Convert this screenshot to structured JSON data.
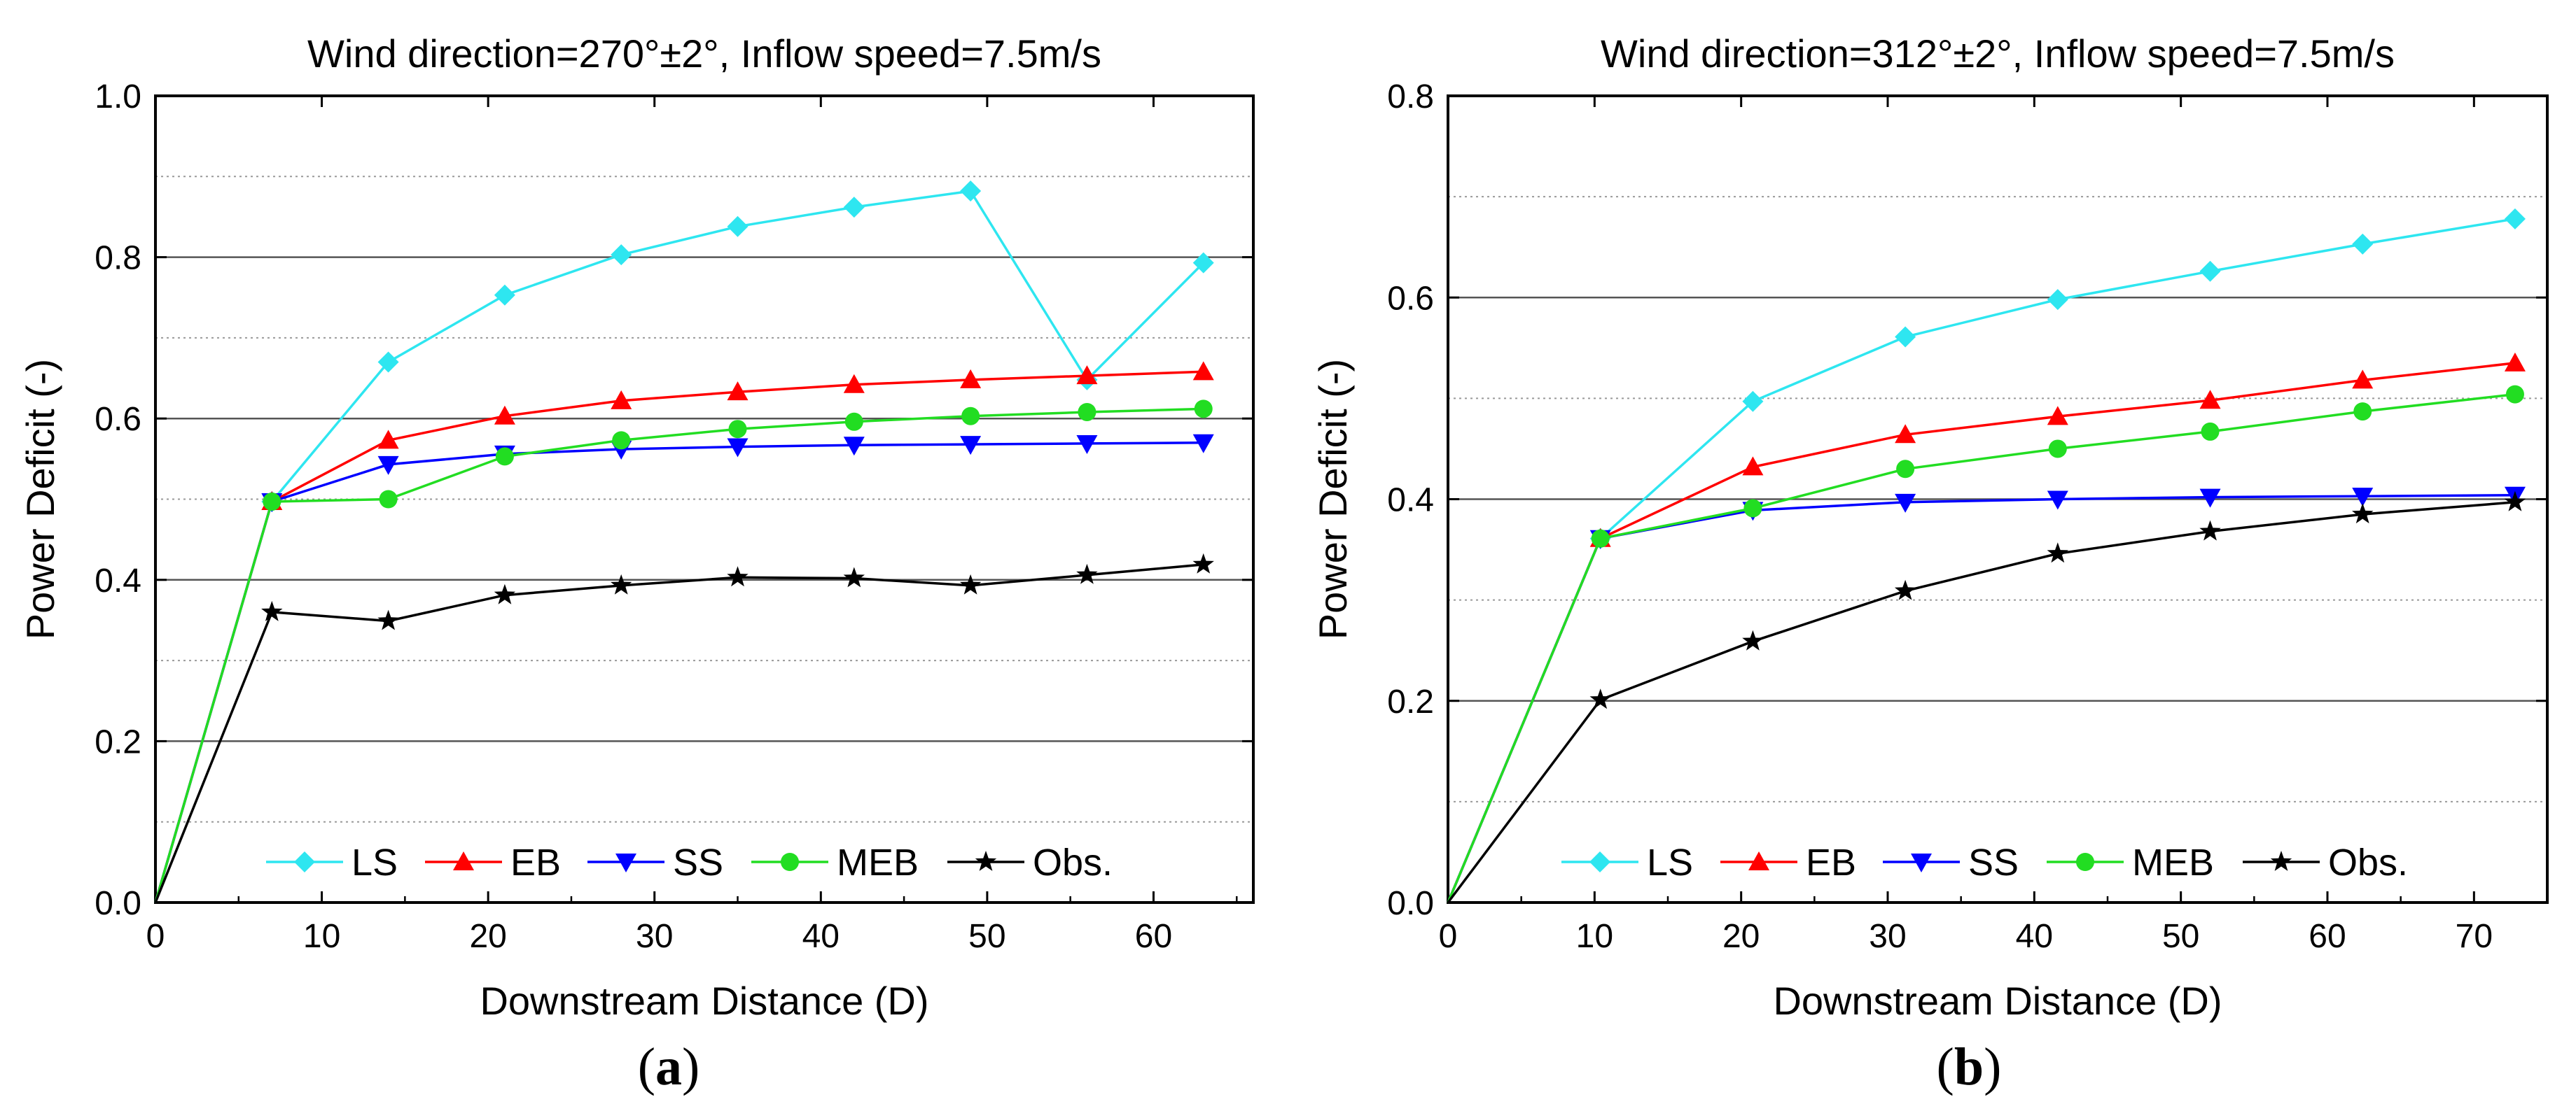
{
  "colors": {
    "LS": "#2ee6f0",
    "EB": "#ff0000",
    "SS": "#0000ff",
    "MEB": "#22dd22",
    "Obs.": "#000000"
  },
  "markers": {
    "LS": "diamond",
    "EB": "triangle-up",
    "SS": "triangle-down",
    "MEB": "circle",
    "Obs.": "star"
  },
  "chart_data": [
    {
      "type": "line",
      "panel_label": "a",
      "title": "Wind direction=270°±2°, Inflow speed=7.5m/s",
      "xlabel": "Downstream Distance (D)",
      "ylabel": "Power Deficit (-)",
      "xlim": [
        0,
        66
      ],
      "ylim": [
        0,
        1.0
      ],
      "xticks": [
        0,
        10,
        20,
        30,
        40,
        50,
        60
      ],
      "yticks": [
        0.0,
        0.2,
        0.4,
        0.6,
        0.8,
        1.0
      ],
      "grid": true,
      "legend_position": "bottom",
      "x": [
        0,
        7,
        14,
        21,
        28,
        35,
        42,
        49,
        56,
        63
      ],
      "series": [
        {
          "name": "LS",
          "values": [
            0,
            0.497,
            0.67,
            0.753,
            0.803,
            0.838,
            0.862,
            0.882,
            0.648,
            0.793
          ]
        },
        {
          "name": "EB",
          "values": [
            0,
            0.497,
            0.573,
            0.603,
            0.622,
            0.633,
            0.642,
            0.648,
            0.653,
            0.658
          ]
        },
        {
          "name": "SS",
          "values": [
            0,
            0.497,
            0.543,
            0.556,
            0.562,
            0.565,
            0.567,
            0.568,
            0.569,
            0.57
          ]
        },
        {
          "name": "MEB",
          "values": [
            0,
            0.497,
            0.5,
            0.553,
            0.573,
            0.587,
            0.596,
            0.603,
            0.608,
            0.612
          ]
        },
        {
          "name": "Obs.",
          "values": [
            0,
            0.36,
            0.349,
            0.381,
            0.393,
            0.403,
            0.402,
            0.393,
            0.406,
            0.419
          ]
        }
      ]
    },
    {
      "type": "line",
      "panel_label": "b",
      "title": "Wind direction=312°±2°, Inflow speed=7.5m/s",
      "xlabel": "Downstream Distance (D)",
      "ylabel": "Power Deficit (-)",
      "xlim": [
        0,
        75
      ],
      "ylim": [
        0,
        0.8
      ],
      "xticks": [
        0,
        10,
        20,
        30,
        40,
        50,
        60,
        70
      ],
      "yticks": [
        0.0,
        0.2,
        0.4,
        0.6,
        0.8
      ],
      "grid": true,
      "legend_position": "bottom",
      "x": [
        0,
        10.4,
        20.8,
        31.2,
        41.6,
        52.0,
        62.4,
        72.8
      ],
      "series": [
        {
          "name": "LS",
          "values": [
            0,
            0.361,
            0.497,
            0.561,
            0.598,
            0.626,
            0.653,
            0.678
          ]
        },
        {
          "name": "EB",
          "values": [
            0,
            0.361,
            0.432,
            0.464,
            0.482,
            0.498,
            0.518,
            0.535
          ]
        },
        {
          "name": "SS",
          "values": [
            0,
            0.361,
            0.389,
            0.397,
            0.4,
            0.402,
            0.403,
            0.404
          ]
        },
        {
          "name": "MEB",
          "values": [
            0,
            0.361,
            0.391,
            0.43,
            0.45,
            0.467,
            0.487,
            0.504
          ]
        },
        {
          "name": "Obs.",
          "values": [
            0,
            0.201,
            0.259,
            0.309,
            0.346,
            0.368,
            0.385,
            0.397
          ]
        }
      ]
    }
  ]
}
